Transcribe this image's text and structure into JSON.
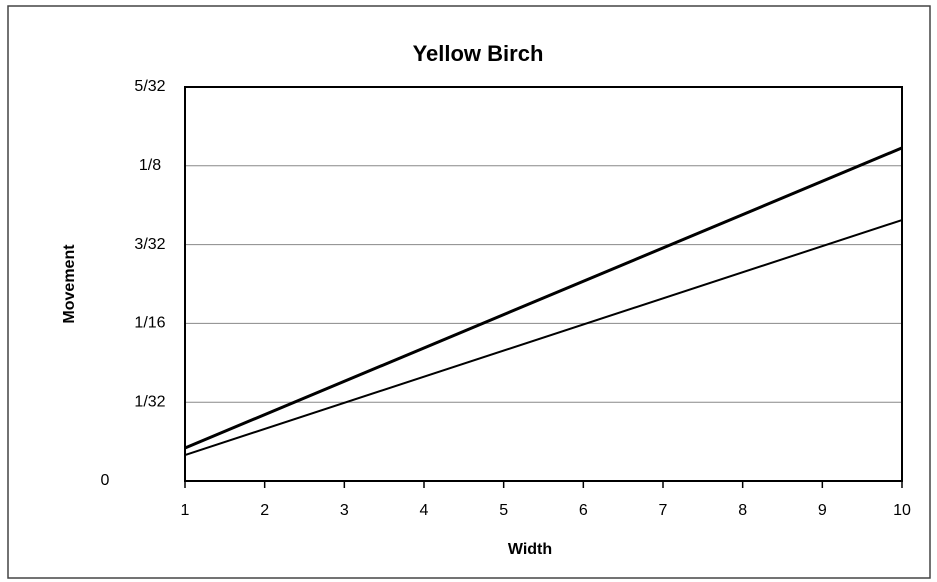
{
  "chart_data": {
    "type": "line",
    "title": "Yellow Birch",
    "x_label": "Width",
    "y_label": "Movement",
    "x": [
      1,
      10
    ],
    "series": [
      {
        "color": "#000000",
        "values": [
          0.0131,
          0.1321
        ]
      },
      {
        "color": "#000000",
        "values": [
          0.0103,
          0.1035
        ]
      }
    ],
    "xlim": [
      1,
      10
    ],
    "xticks": [
      1,
      2,
      3,
      4,
      5,
      6,
      7,
      8,
      9,
      10
    ],
    "ylim": [
      0,
      0.15625
    ],
    "yticks": [
      0,
      {
        "value": 0.03125,
        "label": "1/32"
      },
      {
        "value": 0.0625,
        "label": "1/16"
      },
      {
        "value": 0.09375,
        "label": "3/32"
      },
      {
        "value": 0.125,
        "label": "1/8"
      },
      {
        "value": 0.15625,
        "label": "5/32"
      }
    ],
    "grid": true
  }
}
